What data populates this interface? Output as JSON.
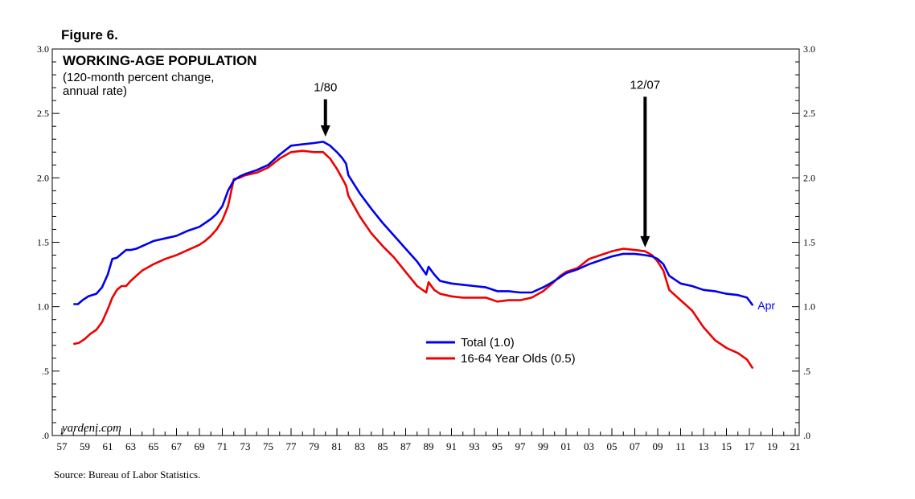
{
  "figure_label": "Figure 6.",
  "source_text": "Source: Bureau of Labor Statistics.",
  "watermark": "yardeni.com",
  "chart_data": {
    "type": "line",
    "title": "WORKING-AGE POPULATION",
    "subtitle_lines": [
      "(120-month percent change,",
      "annual rate)"
    ],
    "xlabel": "",
    "ylabel": "",
    "xlim": [
      1957,
      2021
    ],
    "ylim": [
      0,
      3.0
    ],
    "yticks": [
      0.0,
      0.5,
      1.0,
      1.5,
      2.0,
      2.5,
      3.0
    ],
    "ytick_labels_left": [
      ".0",
      ".5",
      "1.0",
      "1.5",
      "2.0",
      "2.5",
      "3.0"
    ],
    "ytick_labels_right": [
      ".0",
      ".5",
      "1.0",
      "1.5",
      "2.0",
      "2.5",
      "3.0"
    ],
    "xtick_years": [
      1957,
      1959,
      1961,
      1963,
      1965,
      1967,
      1969,
      1971,
      1973,
      1975,
      1977,
      1979,
      1981,
      1983,
      1985,
      1987,
      1989,
      1991,
      1993,
      1995,
      1997,
      1999,
      2001,
      2003,
      2005,
      2007,
      2009,
      2011,
      2013,
      2015,
      2017,
      2019,
      2021
    ],
    "xtick_labels": [
      "57",
      "59",
      "61",
      "63",
      "65",
      "67",
      "69",
      "71",
      "73",
      "75",
      "77",
      "79",
      "81",
      "83",
      "85",
      "87",
      "89",
      "91",
      "93",
      "95",
      "97",
      "99",
      "01",
      "03",
      "05",
      "07",
      "09",
      "11",
      "13",
      "15",
      "17",
      "19",
      "21"
    ],
    "grid": false,
    "legend_position": "lower-center",
    "end_label": "Apr",
    "annotations": [
      {
        "text": "1/80",
        "x": 1980.0,
        "arrow_from_y": 2.61,
        "arrow_to_y": 2.32
      },
      {
        "text": "12/07",
        "x": 2007.9,
        "arrow_from_y": 2.63,
        "arrow_to_y": 1.46
      }
    ],
    "series": [
      {
        "name": "Total (1.0)",
        "color": "#0000ee",
        "x": [
          1958.0,
          1958.4,
          1958.8,
          1959.3,
          1960.0,
          1960.5,
          1961.0,
          1961.4,
          1961.8,
          1962.2,
          1962.6,
          1963.0,
          1963.5,
          1964.0,
          1965.0,
          1966.0,
          1967.0,
          1968.0,
          1969.0,
          1969.5,
          1970.0,
          1970.5,
          1971.0,
          1971.5,
          1972.0,
          1972.5,
          1973.0,
          1974.0,
          1975.0,
          1976.0,
          1977.0,
          1978.0,
          1979.0,
          1979.8,
          1980.4,
          1981.0,
          1981.5,
          1981.8,
          1982.0,
          1983.0,
          1984.0,
          1985.0,
          1986.0,
          1987.0,
          1988.0,
          1988.8,
          1989.0,
          1989.5,
          1990.0,
          1991.0,
          1992.0,
          1993.0,
          1994.0,
          1995.0,
          1996.0,
          1997.0,
          1998.0,
          1999.0,
          1999.8,
          2000.5,
          2001.0,
          2002.0,
          2003.0,
          2004.0,
          2005.0,
          2006.0,
          2007.0,
          2007.9,
          2008.5,
          2009.0,
          2009.5,
          2010.0,
          2011.0,
          2012.0,
          2013.0,
          2014.0,
          2015.0,
          2016.0,
          2016.8,
          2017.3
        ],
        "values": [
          1.02,
          1.02,
          1.05,
          1.08,
          1.1,
          1.15,
          1.25,
          1.37,
          1.38,
          1.41,
          1.44,
          1.44,
          1.45,
          1.47,
          1.51,
          1.53,
          1.55,
          1.59,
          1.62,
          1.65,
          1.68,
          1.72,
          1.78,
          1.9,
          1.98,
          2.01,
          2.03,
          2.06,
          2.1,
          2.18,
          2.25,
          2.26,
          2.27,
          2.28,
          2.25,
          2.2,
          2.15,
          2.11,
          2.02,
          1.88,
          1.76,
          1.65,
          1.55,
          1.45,
          1.35,
          1.25,
          1.31,
          1.25,
          1.2,
          1.18,
          1.17,
          1.16,
          1.15,
          1.12,
          1.12,
          1.11,
          1.11,
          1.15,
          1.19,
          1.23,
          1.26,
          1.29,
          1.33,
          1.36,
          1.39,
          1.41,
          1.41,
          1.4,
          1.39,
          1.37,
          1.33,
          1.24,
          1.18,
          1.16,
          1.13,
          1.12,
          1.1,
          1.09,
          1.07,
          1.01
        ]
      },
      {
        "name": "16-64 Year Olds (0.5)",
        "color": "#ee0000",
        "x": [
          1958.0,
          1958.5,
          1959.0,
          1959.5,
          1960.0,
          1960.5,
          1961.0,
          1961.4,
          1961.8,
          1962.2,
          1962.6,
          1963.0,
          1963.5,
          1964.0,
          1965.0,
          1966.0,
          1967.0,
          1968.0,
          1969.0,
          1969.5,
          1970.0,
          1970.5,
          1971.0,
          1971.5,
          1972.0,
          1972.5,
          1973.0,
          1974.0,
          1975.0,
          1976.0,
          1977.0,
          1978.0,
          1979.0,
          1979.8,
          1980.4,
          1981.0,
          1981.5,
          1981.8,
          1982.0,
          1983.0,
          1984.0,
          1985.0,
          1986.0,
          1987.0,
          1988.0,
          1988.8,
          1989.0,
          1989.5,
          1990.0,
          1991.0,
          1992.0,
          1993.0,
          1994.0,
          1995.0,
          1996.0,
          1997.0,
          1998.0,
          1999.0,
          1999.8,
          2000.5,
          2001.0,
          2002.0,
          2003.0,
          2004.0,
          2005.0,
          2006.0,
          2007.0,
          2007.9,
          2008.5,
          2009.0,
          2009.5,
          2010.0,
          2011.0,
          2012.0,
          2013.0,
          2014.0,
          2015.0,
          2016.0,
          2016.8,
          2017.3
        ],
        "values": [
          0.71,
          0.72,
          0.75,
          0.79,
          0.82,
          0.88,
          0.98,
          1.07,
          1.13,
          1.16,
          1.16,
          1.2,
          1.24,
          1.28,
          1.33,
          1.37,
          1.4,
          1.44,
          1.48,
          1.51,
          1.55,
          1.6,
          1.67,
          1.78,
          1.99,
          2.0,
          2.02,
          2.04,
          2.08,
          2.15,
          2.2,
          2.21,
          2.2,
          2.2,
          2.15,
          2.07,
          1.99,
          1.94,
          1.86,
          1.7,
          1.57,
          1.47,
          1.38,
          1.27,
          1.16,
          1.11,
          1.19,
          1.13,
          1.1,
          1.08,
          1.07,
          1.07,
          1.07,
          1.04,
          1.05,
          1.05,
          1.07,
          1.12,
          1.18,
          1.24,
          1.27,
          1.3,
          1.37,
          1.4,
          1.43,
          1.45,
          1.44,
          1.43,
          1.4,
          1.35,
          1.28,
          1.13,
          1.05,
          0.97,
          0.84,
          0.74,
          0.68,
          0.64,
          0.59,
          0.52
        ]
      }
    ]
  }
}
